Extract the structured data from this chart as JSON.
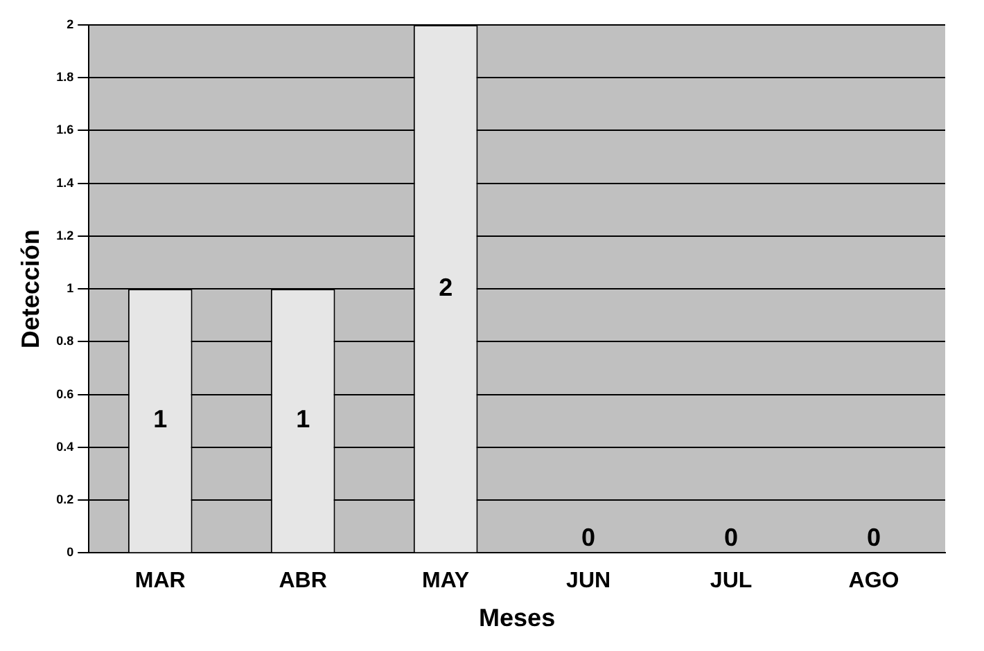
{
  "chart_data": {
    "type": "bar",
    "xlabel": "Meses",
    "ylabel": "Detección",
    "categories": [
      "MAR",
      "ABR",
      "MAY",
      "JUN",
      "JUL",
      "AGO"
    ],
    "values": [
      1,
      1,
      2,
      0,
      0,
      0
    ],
    "color": "#e6e6e6",
    "ylim": [
      0,
      2
    ],
    "yticks": [
      0,
      0.2,
      0.4,
      0.6,
      0.8,
      1,
      1.2,
      1.4,
      1.6,
      1.8,
      2
    ],
    "grid": "y",
    "data_labels": true
  }
}
